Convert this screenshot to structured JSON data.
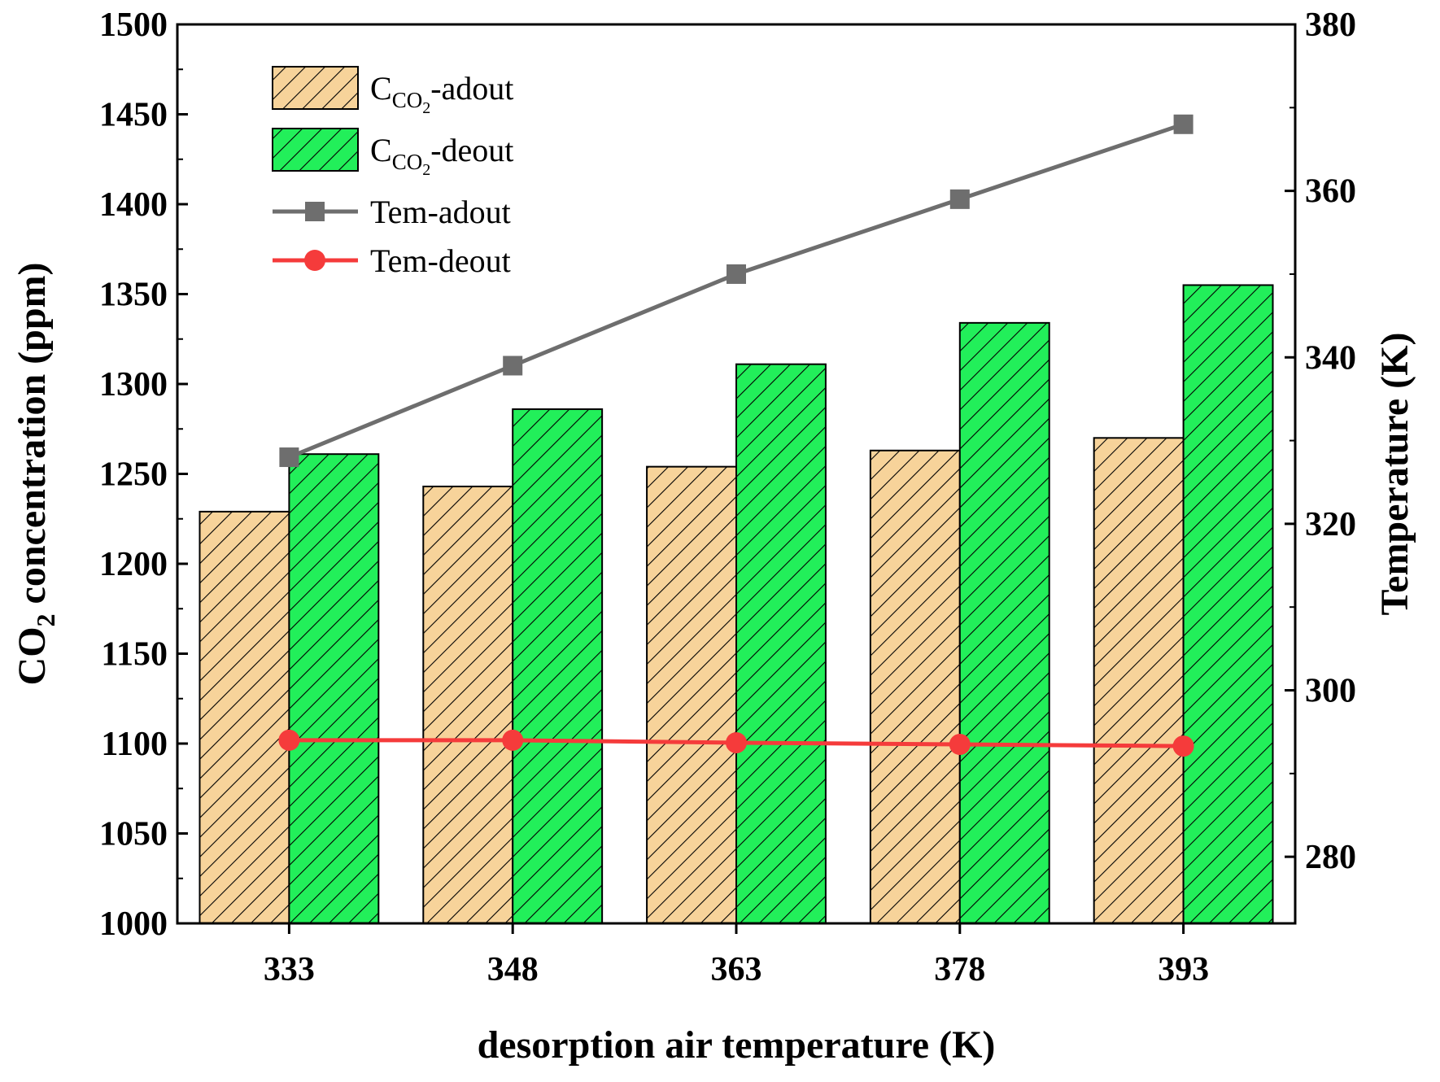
{
  "colors": {
    "adout_bar": "#f7d39a",
    "deout_bar": "#22ef5a",
    "tem_adout": "#6e6e6e",
    "tem_deout": "#f53b3b",
    "hatch": "#000000",
    "axis": "#000000"
  },
  "chart_data": {
    "type": "bar+line",
    "categories": [
      "333",
      "348",
      "363",
      "378",
      "393"
    ],
    "xlabel": "desorption air temperature (K)",
    "ylabel": {
      "pre": "CO",
      "sub": "2",
      "post": " concentration (ppm)"
    },
    "y2label": "Temperature (K)",
    "ylim": [
      1000,
      1500
    ],
    "yticks": [
      1000,
      1050,
      1100,
      1150,
      1200,
      1250,
      1300,
      1350,
      1400,
      1450,
      1500
    ],
    "y2lim": [
      272,
      380
    ],
    "y2ticks": [
      280,
      300,
      320,
      340,
      360,
      380
    ],
    "grid": false,
    "legend_position": "top-left",
    "bar_series": [
      {
        "key": "adout",
        "name": {
          "pre": "C",
          "sub": "CO",
          "subsub": "2",
          "post": "-adout"
        },
        "values": [
          1229,
          1243,
          1254,
          1263,
          1270
        ],
        "color_key": "adout_bar"
      },
      {
        "key": "deout",
        "name": {
          "pre": "C",
          "sub": "CO",
          "subsub": "2",
          "post": "-deout"
        },
        "values": [
          1261,
          1286,
          1311,
          1334,
          1355
        ],
        "color_key": "deout_bar"
      }
    ],
    "line_series": [
      {
        "key": "tem-adout",
        "name": "Tem-adout",
        "axis": "right",
        "marker": "square",
        "values": [
          328,
          339,
          350,
          359,
          368
        ],
        "color_key": "tem_adout"
      },
      {
        "key": "tem-deout",
        "name": "Tem-deout",
        "axis": "right",
        "marker": "circle",
        "values": [
          294,
          294,
          293.7,
          293.5,
          293.3
        ],
        "color_key": "tem_deout"
      }
    ]
  }
}
